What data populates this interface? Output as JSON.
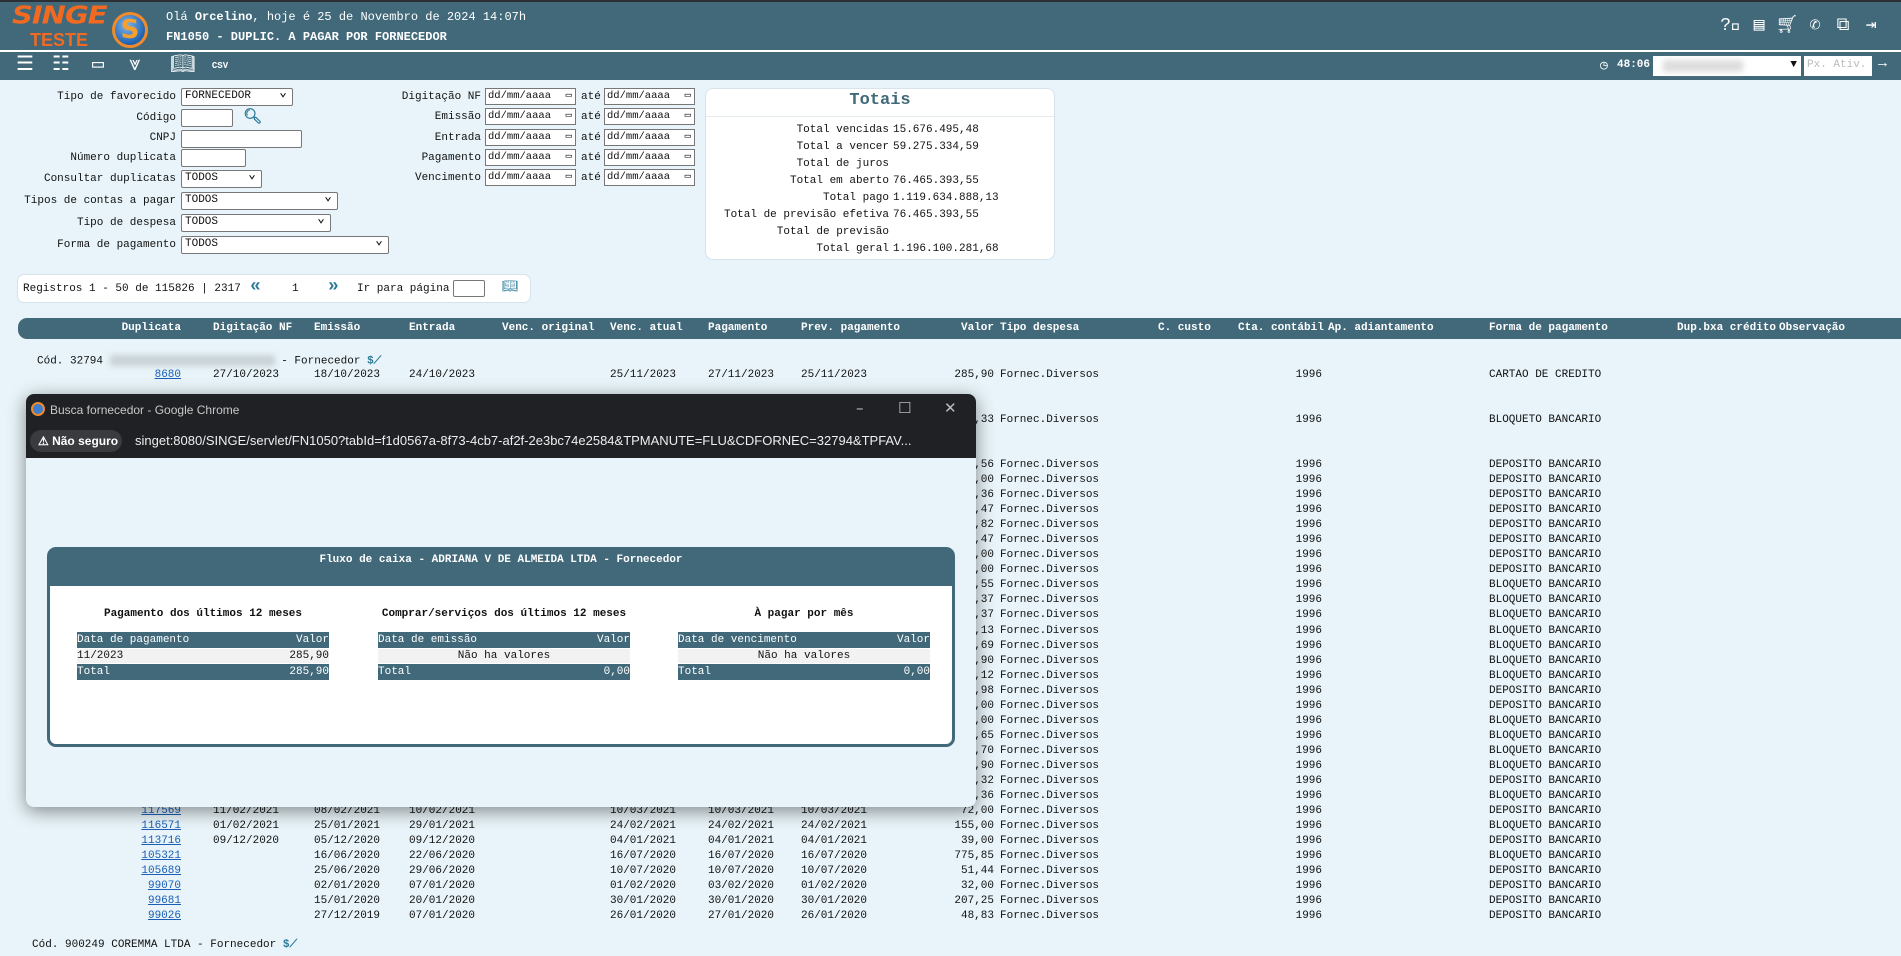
{
  "header": {
    "logo_top": "SINGE",
    "logo_bottom": "TESTE",
    "greeting_prefix": "Olá ",
    "user": "Orcelino",
    "greeting_suffix": ", hoje é 25 de Novembro de 2024 14:07h",
    "title": "FN1050 - DUPLIC. A PAGAR POR FORNECEDOR",
    "icons": [
      "help-icon",
      "document-icon",
      "cart-icon",
      "phone-chat-icon",
      "windows-icon",
      "logout-icon"
    ]
  },
  "toolbar": {
    "timer": "48:06",
    "company_select": "",
    "next_placeholder": "Px. Ativ.",
    "icons": [
      "list-icon",
      "checklist-icon",
      "form-icon",
      "expand-all-icon",
      "book-icon",
      "csv-icon"
    ]
  },
  "filters": {
    "tipo_favorecido": {
      "label": "Tipo de favorecido",
      "value": "FORNECEDOR"
    },
    "codigo": {
      "label": "Código",
      "value": ""
    },
    "cnpj": {
      "label": "CNPJ",
      "value": ""
    },
    "numero_duplicata": {
      "label": "Número duplicata",
      "value": ""
    },
    "consultar": {
      "label": "Consultar duplicatas",
      "value": "TODOS"
    },
    "tipos_contas": {
      "label": "Tipos de contas a pagar",
      "value": "TODOS"
    },
    "tipo_despesa": {
      "label": "Tipo de despesa",
      "value": "TODOS"
    },
    "forma_pagamento": {
      "label": "Forma de pagamento",
      "value": "TODOS"
    },
    "date_placeholder": "dd/mm/aaaa",
    "ate": "até",
    "dates": [
      "Digitação NF",
      "Emissão",
      "Entrada",
      "Pagamento",
      "Vencimento"
    ]
  },
  "totais": {
    "title": "Totais",
    "items": [
      {
        "label": "Total vencidas",
        "value": "15.676.495,48"
      },
      {
        "label": "Total a vencer",
        "value": "59.275.334,59"
      },
      {
        "label": "Total de juros",
        "value": ""
      },
      {
        "label": "Total em aberto",
        "value": "76.465.393,55"
      },
      {
        "label": "Total pago",
        "value": "1.119.634.888,13"
      },
      {
        "label": "Total de previsão efetiva",
        "value": "76.465.393,55"
      },
      {
        "label": "Total de previsão",
        "value": ""
      },
      {
        "label": "Total geral",
        "value": "1.196.100.281,68"
      }
    ]
  },
  "pagination": {
    "info": "Registros 1 - 50 de 115826 | 2317",
    "prev": "«",
    "page": "1",
    "next": "»",
    "goto_label": "Ir para página",
    "goto_value": ""
  },
  "table": {
    "columns": [
      "Duplicata",
      "Digitação NF",
      "Emissão",
      "Entrada",
      "Venc. original",
      "Venc. atual",
      "Pagamento",
      "Prev. pagamento",
      "Valor",
      "Tipo despesa",
      "C. custo",
      "Cta. contábil",
      "Ap. adiantamento",
      "Forma de pagamento",
      "Dup.bxa crédito",
      "Observação"
    ],
    "groups": [
      {
        "cod": "Cód. 32794",
        "type": "- Fornecedor"
      },
      {
        "cod": "Cód. 900249 COREMMA LTDA",
        "type": "- Fornecedor"
      }
    ],
    "rows": [
      {
        "dup": "8680",
        "dig": "27/10/2023",
        "emi": "18/10/2023",
        "ent": "24/10/2023",
        "va": "25/11/2023",
        "pag": "27/11/2023",
        "prev": "25/11/2023",
        "valor": "285,90",
        "tipo": "Fornec.Diversos",
        "cta": "1996",
        "forma": "CARTAO DE CREDITO"
      },
      {},
      {},
      {
        "valor": ",33",
        "tipo": "Fornec.Diversos",
        "cta": "1996",
        "forma": "BLOQUETO BANCARIO"
      },
      {},
      {},
      {
        "valor": ",56",
        "tipo": "Fornec.Diversos",
        "cta": "1996",
        "forma": "DEPOSITO BANCARIO"
      },
      {
        "valor": ",00",
        "tipo": "Fornec.Diversos",
        "cta": "1996",
        "forma": "DEPOSITO BANCARIO"
      },
      {
        "valor": ",36",
        "tipo": "Fornec.Diversos",
        "cta": "1996",
        "forma": "DEPOSITO BANCARIO"
      },
      {
        "valor": ",47",
        "tipo": "Fornec.Diversos",
        "cta": "1996",
        "forma": "DEPOSITO BANCARIO"
      },
      {
        "valor": ",82",
        "tipo": "Fornec.Diversos",
        "cta": "1996",
        "forma": "DEPOSITO BANCARIO"
      },
      {
        "valor": ",47",
        "tipo": "Fornec.Diversos",
        "cta": "1996",
        "forma": "DEPOSITO BANCARIO"
      },
      {
        "valor": ",00",
        "tipo": "Fornec.Diversos",
        "cta": "1996",
        "forma": "DEPOSITO BANCARIO"
      },
      {
        "valor": ",00",
        "tipo": "Fornec.Diversos",
        "cta": "1996",
        "forma": "DEPOSITO BANCARIO"
      },
      {
        "valor": ",55",
        "tipo": "Fornec.Diversos",
        "cta": "1996",
        "forma": "BLOQUETO BANCARIO"
      },
      {
        "valor": ",37",
        "tipo": "Fornec.Diversos",
        "cta": "1996",
        "forma": "BLOQUETO BANCARIO"
      },
      {
        "valor": ",37",
        "tipo": "Fornec.Diversos",
        "cta": "1996",
        "forma": "BLOQUETO BANCARIO"
      },
      {
        "valor": ",13",
        "tipo": "Fornec.Diversos",
        "cta": "1996",
        "forma": "BLOQUETO BANCARIO"
      },
      {
        "valor": ",69",
        "tipo": "Fornec.Diversos",
        "cta": "1996",
        "forma": "BLOQUETO BANCARIO"
      },
      {
        "valor": ",90",
        "tipo": "Fornec.Diversos",
        "cta": "1996",
        "forma": "BLOQUETO BANCARIO"
      },
      {
        "valor": ",12",
        "tipo": "Fornec.Diversos",
        "cta": "1996",
        "forma": "BLOQUETO BANCARIO"
      },
      {
        "valor": ",98",
        "tipo": "Fornec.Diversos",
        "cta": "1996",
        "forma": "DEPOSITO BANCARIO"
      },
      {
        "valor": ",00",
        "tipo": "Fornec.Diversos",
        "cta": "1996",
        "forma": "DEPOSITO BANCARIO"
      },
      {
        "valor": ",00",
        "tipo": "Fornec.Diversos",
        "cta": "1996",
        "forma": "BLOQUETO BANCARIO"
      },
      {
        "valor": ",65",
        "tipo": "Fornec.Diversos",
        "cta": "1996",
        "forma": "BLOQUETO BANCARIO"
      },
      {
        "valor": ",70",
        "tipo": "Fornec.Diversos",
        "cta": "1996",
        "forma": "BLOQUETO BANCARIO"
      },
      {
        "valor": ",90",
        "tipo": "Fornec.Diversos",
        "cta": "1996",
        "forma": "BLOQUETO BANCARIO"
      },
      {
        "valor": ",32",
        "tipo": "Fornec.Diversos",
        "cta": "1996",
        "forma": "DEPOSITO BANCARIO"
      },
      {
        "valor": ",36",
        "tipo": "Fornec.Diversos",
        "cta": "1996",
        "forma": "BLOQUETO BANCARIO"
      },
      {
        "dup": "117569",
        "dig": "11/02/2021",
        "emi": "08/02/2021",
        "ent": "10/02/2021",
        "va": "10/03/2021",
        "pag": "10/03/2021",
        "prev": "10/03/2021",
        "valor": "72,00",
        "tipo": "Fornec.Diversos",
        "cta": "1996",
        "forma": "DEPOSITO BANCARIO"
      },
      {
        "dup": "116571",
        "dig": "01/02/2021",
        "emi": "25/01/2021",
        "ent": "29/01/2021",
        "va": "24/02/2021",
        "pag": "24/02/2021",
        "prev": "24/02/2021",
        "valor": "155,00",
        "tipo": "Fornec.Diversos",
        "cta": "1996",
        "forma": "BLOQUETO BANCARIO"
      },
      {
        "dup": "113716",
        "dig": "09/12/2020",
        "emi": "05/12/2020",
        "ent": "09/12/2020",
        "va": "04/01/2021",
        "pag": "04/01/2021",
        "prev": "04/01/2021",
        "valor": "39,00",
        "tipo": "Fornec.Diversos",
        "cta": "1996",
        "forma": "DEPOSITO BANCARIO"
      },
      {
        "dup": "105321",
        "emi": "16/06/2020",
        "ent": "22/06/2020",
        "va": "16/07/2020",
        "pag": "16/07/2020",
        "prev": "16/07/2020",
        "valor": "775,85",
        "tipo": "Fornec.Diversos",
        "cta": "1996",
        "forma": "BLOQUETO BANCARIO"
      },
      {
        "dup": "105689",
        "emi": "25/06/2020",
        "ent": "29/06/2020",
        "va": "10/07/2020",
        "pag": "10/07/2020",
        "prev": "10/07/2020",
        "valor": "51,44",
        "tipo": "Fornec.Diversos",
        "cta": "1996",
        "forma": "DEPOSITO BANCARIO"
      },
      {
        "dup": "99070",
        "emi": "02/01/2020",
        "ent": "07/01/2020",
        "va": "01/02/2020",
        "pag": "03/02/2020",
        "prev": "01/02/2020",
        "valor": "32,00",
        "tipo": "Fornec.Diversos",
        "cta": "1996",
        "forma": "DEPOSITO BANCARIO"
      },
      {
        "dup": "99681",
        "emi": "15/01/2020",
        "ent": "20/01/2020",
        "va": "30/01/2020",
        "pag": "30/01/2020",
        "prev": "30/01/2020",
        "valor": "207,25",
        "tipo": "Fornec.Diversos",
        "cta": "1996",
        "forma": "DEPOSITO BANCARIO"
      },
      {
        "dup": "99026",
        "emi": "27/12/2019",
        "ent": "07/01/2020",
        "va": "26/01/2020",
        "pag": "27/01/2020",
        "prev": "26/01/2020",
        "valor": "48,83",
        "tipo": "Fornec.Diversos",
        "cta": "1996",
        "forma": "DEPOSITO BANCARIO"
      }
    ]
  },
  "popup": {
    "window_title": "Busca fornecedor - Google Chrome",
    "security": "Não seguro",
    "url": "singet:8080/SINGE/servlet/FN1050?tabId=f1d0567a-8f73-4cb7-af2f-2e3bc74e2584&TPMANUTE=FLU&CDFORNEC=32794&TPFAV...",
    "panel_title": "Fluxo de caixa - ADRIANA V DE ALMEIDA LTDA - Fornecedor",
    "sections": [
      {
        "title": "Pagamento dos últimos 12 meses",
        "col1": "Data de pagamento",
        "col2": "Valor",
        "row_l": "11/2023",
        "row_r": "285,90",
        "total_label": "Total",
        "total": "285,90"
      },
      {
        "title": "Comprar/serviços dos últimos 12 meses",
        "col1": "Data de emissão",
        "col2": "Valor",
        "empty": "Não ha valores",
        "total_label": "Total",
        "total": "0,00"
      },
      {
        "title": "À pagar por mês",
        "col1": "Data de vencimento",
        "col2": "Valor",
        "empty": "Não ha valores",
        "total_label": "Total",
        "total": "0,00"
      }
    ]
  },
  "colors": {
    "primary": "#41697a",
    "background": "#e8f4f9",
    "brand": "#f26a22",
    "link": "#1a5fb4"
  }
}
